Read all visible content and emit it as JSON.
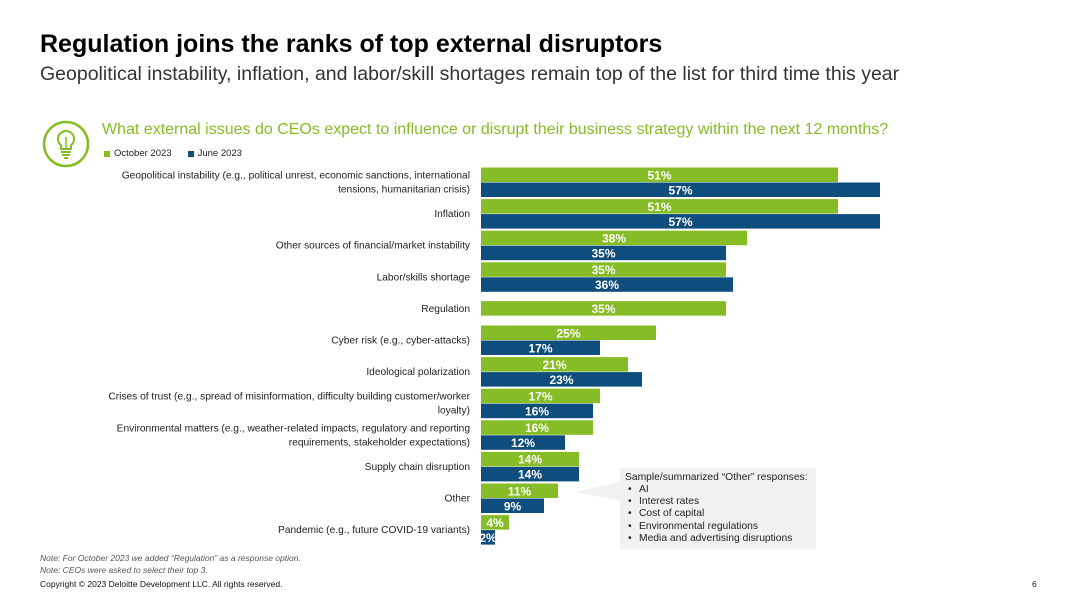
{
  "header": {
    "title": "Regulation joins the ranks of top external disruptors",
    "subtitle": "Geopolitical instability, inflation, and labor/skill shortages remain top of the list for third time this year",
    "question": "What external issues do CEOs expect to influence or disrupt their business strategy within the next 12 months?",
    "question_icon": "lightbulb-icon"
  },
  "colors": {
    "october": "#86bc25",
    "june": "#0f4d7c",
    "accent": "#86bc25",
    "callout_bg": "#f1f1f1"
  },
  "chart_data": {
    "type": "bar",
    "orientation": "horizontal",
    "value_suffix": "%",
    "legend_placement": "top-left",
    "categories": [
      [
        "Geopolitical instability (e.g., political unrest, economic sanctions, international",
        "tensions, humanitarian crisis)"
      ],
      [
        "Inflation"
      ],
      [
        "Other sources of financial/market instability"
      ],
      [
        "Labor/skills shortage"
      ],
      [
        "Regulation"
      ],
      [
        "Cyber risk (e.g., cyber-attacks)"
      ],
      [
        "Ideological polarization"
      ],
      [
        "Crises of trust (e.g., spread of misinformation, difficulty building customer/worker",
        "loyalty)"
      ],
      [
        "Environmental matters (e.g., weather-related impacts, regulatory and reporting",
        "requirements, stakeholder expectations)"
      ],
      [
        "Supply chain disruption"
      ],
      [
        "Other"
      ],
      [
        "Pandemic (e.g., future COVID-19 variants)"
      ]
    ],
    "series": [
      {
        "name": "October 2023",
        "values": [
          51,
          51,
          38,
          35,
          35,
          25,
          21,
          17,
          16,
          14,
          11,
          4
        ]
      },
      {
        "name": "June 2023",
        "values": [
          57,
          57,
          35,
          36,
          null,
          17,
          23,
          16,
          12,
          14,
          9,
          2
        ]
      }
    ]
  },
  "callout": {
    "title": "Sample/summarized “Other” responses:",
    "items": [
      "AI",
      "Interest rates",
      "Cost of capital",
      "Environmental regulations",
      "Media and advertising disruptions"
    ]
  },
  "notes": [
    "Note: For October 2023 we added “Regulation” as a response option.",
    "Note: CEOs were asked to select their top 3."
  ],
  "footer": {
    "copyright": "Copyright © 2023 Deloitte Development LLC. All rights reserved.",
    "page_number": "6"
  }
}
